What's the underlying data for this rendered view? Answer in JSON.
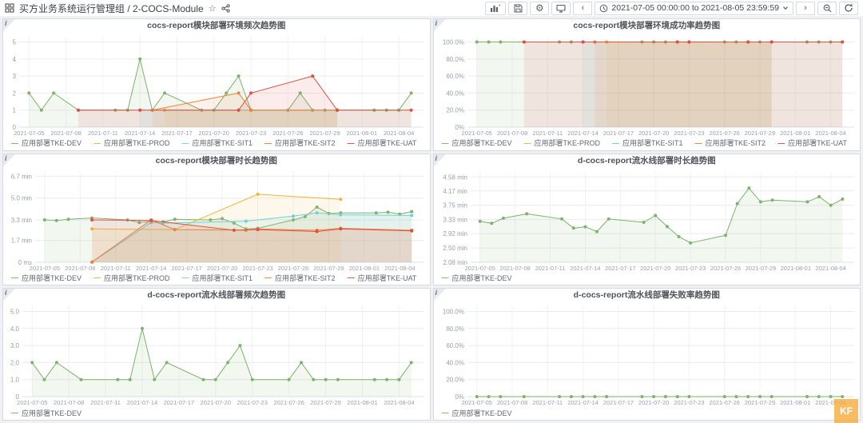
{
  "ui": {
    "info_glyph": "i",
    "star_glyph": "☆",
    "gear_glyph": "⚙",
    "nav_prev": "‹",
    "nav_next": "›",
    "legend_dash": "—"
  },
  "header": {
    "breadcrumb": "买方业务系统运行管理组 / 2-COCS-Module",
    "time_range_label": "2021-07-05 00:00:00 to 2021-08-05 23:59:59"
  },
  "watermark": {
    "label": "KF",
    "color": "#f6ad3c"
  },
  "x_axis": {
    "start_date": "2021-07-05",
    "xlim": [
      -0.8,
      32
    ],
    "tick_days": [
      0,
      3,
      6,
      9,
      12,
      15,
      18,
      21,
      24,
      27,
      30
    ],
    "tick_labels": [
      "2021-07-05",
      "2021-07-08",
      "2021-07-11",
      "2021-07-14",
      "2021-07-17",
      "2021-07-20",
      "2021-07-23",
      "2021-07-26",
      "2021-07-29",
      "2021-08-01",
      "2021-08-04"
    ]
  },
  "chart_data": [
    {
      "type": "line",
      "title": "cocs-report模块部署环境频次趋势图",
      "ylim": [
        0,
        5.35
      ],
      "y_ticks": {
        "values": [
          0,
          1,
          2,
          3,
          4,
          5
        ],
        "labels": [
          "0",
          "1",
          "2",
          "3",
          "4",
          "5"
        ]
      },
      "left_pad": 20,
      "series": [
        {
          "name": "应用部署TKE-DEV",
          "color": "#7EB26D",
          "points": [
            [
              0,
              2
            ],
            [
              1,
              1
            ],
            [
              2,
              2
            ],
            [
              4,
              1
            ],
            [
              7,
              1
            ],
            [
              8,
              1
            ],
            [
              9,
              4
            ],
            [
              10,
              1
            ],
            [
              11,
              2
            ],
            [
              14,
              1
            ],
            [
              15,
              1
            ],
            [
              16,
              2
            ],
            [
              17,
              3
            ],
            [
              18,
              1
            ],
            [
              21,
              1
            ],
            [
              22,
              2
            ],
            [
              23,
              1
            ],
            [
              24,
              1
            ],
            [
              25,
              1
            ],
            [
              28,
              1
            ],
            [
              29,
              1
            ],
            [
              30,
              1
            ],
            [
              31,
              2
            ]
          ]
        },
        {
          "name": "应用部署TKE-PROD",
          "color": "#EAB839",
          "points": [
            [
              11,
              1
            ],
            [
              18,
              1
            ],
            [
              25,
              1
            ]
          ]
        },
        {
          "name": "应用部署TKE-SIT1",
          "color": "#6ED0E0",
          "points": [
            [
              9,
              1
            ],
            [
              17,
              1
            ],
            [
              25,
              1
            ]
          ]
        },
        {
          "name": "应用部署TKE-SIT2",
          "color": "#EF843C",
          "points": [
            [
              10,
              1
            ],
            [
              17,
              2
            ],
            [
              18,
              1
            ],
            [
              25,
              1
            ]
          ]
        },
        {
          "name": "应用部署TKE-UAT",
          "color": "#E24D42",
          "points": [
            [
              4,
              1
            ],
            [
              9,
              1
            ],
            [
              17,
              1
            ],
            [
              18,
              2
            ],
            [
              23,
              3
            ],
            [
              25,
              1
            ],
            [
              31,
              1
            ]
          ]
        }
      ]
    },
    {
      "type": "line",
      "title": "cocs-report模块部署环境成功率趋势图",
      "ylim": [
        0,
        107
      ],
      "y_ticks": {
        "values": [
          0,
          20,
          40,
          60,
          80,
          100
        ],
        "labels": [
          "0%",
          "20.0%",
          "40.0%",
          "60.0%",
          "80.0%",
          "100.0%"
        ]
      },
      "left_pad": 42,
      "series": [
        {
          "name": "应用部署TKE-DEV",
          "color": "#7EB26D",
          "points": [
            [
              0,
              100
            ],
            [
              1,
              100
            ],
            [
              2,
              100
            ],
            [
              4,
              100
            ],
            [
              7,
              100
            ],
            [
              8,
              100
            ],
            [
              9,
              100
            ],
            [
              10,
              100
            ],
            [
              11,
              100
            ],
            [
              14,
              100
            ],
            [
              15,
              100
            ],
            [
              16,
              100
            ],
            [
              17,
              100
            ],
            [
              18,
              100
            ],
            [
              21,
              100
            ],
            [
              22,
              100
            ],
            [
              23,
              100
            ],
            [
              24,
              100
            ],
            [
              25,
              100
            ],
            [
              28,
              100
            ],
            [
              29,
              100
            ],
            [
              30,
              100
            ],
            [
              31,
              100
            ]
          ]
        },
        {
          "name": "应用部署TKE-PROD",
          "color": "#EAB839",
          "points": [
            [
              11,
              100
            ],
            [
              18,
              100
            ],
            [
              25,
              100
            ]
          ]
        },
        {
          "name": "应用部署TKE-SIT1",
          "color": "#6ED0E0",
          "points": [
            [
              9,
              100
            ],
            [
              17,
              100
            ],
            [
              25,
              100
            ]
          ]
        },
        {
          "name": "应用部署TKE-SIT2",
          "color": "#EF843C",
          "points": [
            [
              10,
              100
            ],
            [
              17,
              100
            ],
            [
              18,
              100
            ],
            [
              25,
              100
            ]
          ]
        },
        {
          "name": "应用部署TKE-UAT",
          "color": "#E24D42",
          "points": [
            [
              4,
              100
            ],
            [
              9,
              100
            ],
            [
              17,
              100
            ],
            [
              18,
              100
            ],
            [
              23,
              100
            ],
            [
              25,
              100
            ],
            [
              31,
              100
            ]
          ]
        }
      ]
    },
    {
      "type": "line",
      "title": "cocs-report模块部署时长趋势图",
      "ylim": [
        0,
        7.1
      ],
      "y_ticks": {
        "values": [
          0,
          1.7,
          3.3,
          5.0,
          6.7
        ],
        "labels": [
          "0 ms",
          "1.7 min",
          "3.3 min",
          "5.0 min",
          "6.7 min"
        ]
      },
      "left_pad": 40,
      "series": [
        {
          "name": "应用部署TKE-DEV",
          "color": "#7EB26D",
          "points": [
            [
              0,
              3.3
            ],
            [
              1,
              3.25
            ],
            [
              2,
              3.35
            ],
            [
              4,
              3.45
            ],
            [
              7,
              3.3
            ],
            [
              8,
              3.1
            ],
            [
              9,
              3.2
            ],
            [
              10,
              3.15
            ],
            [
              11,
              3.35
            ],
            [
              14,
              3.3
            ],
            [
              15,
              3.4
            ],
            [
              16,
              3.05
            ],
            [
              17,
              2.6
            ],
            [
              18,
              2.65
            ],
            [
              21,
              3.3
            ],
            [
              22,
              3.55
            ],
            [
              23,
              4.3
            ],
            [
              24,
              3.8
            ],
            [
              25,
              3.85
            ],
            [
              28,
              3.85
            ],
            [
              29,
              3.9
            ],
            [
              30,
              3.75
            ],
            [
              31,
              3.95
            ]
          ]
        },
        {
          "name": "应用部署TKE-PROD",
          "color": "#EAB839",
          "points": [
            [
              4,
              2.6
            ],
            [
              11,
              2.55
            ],
            [
              18,
              5.3
            ],
            [
              25,
              4.9
            ]
          ]
        },
        {
          "name": "应用部署TKE-SIT1",
          "color": "#6ED0E0",
          "points": [
            [
              4,
              0.02
            ],
            [
              9,
              3.1
            ],
            [
              10,
              3.05
            ],
            [
              17,
              3.2
            ],
            [
              21,
              3.6
            ],
            [
              23,
              3.85
            ],
            [
              25,
              3.7
            ],
            [
              31,
              3.65
            ]
          ]
        },
        {
          "name": "应用部署TKE-SIT2",
          "color": "#EF843C",
          "points": [
            [
              4,
              0.02
            ],
            [
              9,
              3.3
            ],
            [
              11,
              2.55
            ],
            [
              17,
              2.5
            ],
            [
              18,
              2.6
            ],
            [
              23,
              2.5
            ],
            [
              25,
              2.65
            ],
            [
              31,
              2.5
            ]
          ]
        },
        {
          "name": "应用部署TKE-UAT",
          "color": "#E24D42",
          "points": [
            [
              4,
              3.3
            ],
            [
              9,
              3.25
            ],
            [
              16,
              2.5
            ],
            [
              18,
              2.55
            ],
            [
              23,
              2.4
            ],
            [
              25,
              2.6
            ],
            [
              31,
              2.45
            ]
          ]
        }
      ]
    },
    {
      "type": "line",
      "title": "d-cocs-report流水线部署时长趋势图",
      "ylim": [
        2.08,
        4.75
      ],
      "y_ticks": {
        "values": [
          2.08,
          2.5,
          2.92,
          3.33,
          3.75,
          4.17,
          4.58
        ],
        "labels": [
          "2.08 min",
          "2.50 min",
          "2.92 min",
          "3.33 min",
          "3.75 min",
          "4.17 min",
          "4.58 min"
        ]
      },
      "left_pad": 46,
      "series": [
        {
          "name": "应用部署TKE-DEV",
          "color": "#7EB26D",
          "points": [
            [
              0,
              3.28
            ],
            [
              1,
              3.22
            ],
            [
              2,
              3.37
            ],
            [
              4,
              3.5
            ],
            [
              7,
              3.35
            ],
            [
              8,
              3.08
            ],
            [
              9,
              3.12
            ],
            [
              10,
              2.98
            ],
            [
              11,
              3.35
            ],
            [
              14,
              3.25
            ],
            [
              15,
              3.45
            ],
            [
              16,
              3.13
            ],
            [
              17,
              2.83
            ],
            [
              18,
              2.65
            ],
            [
              21,
              2.87
            ],
            [
              22,
              3.8
            ],
            [
              23,
              4.25
            ],
            [
              24,
              3.85
            ],
            [
              25,
              3.9
            ],
            [
              28,
              3.85
            ],
            [
              29,
              4.0
            ],
            [
              30,
              3.75
            ],
            [
              31,
              3.93
            ]
          ]
        }
      ]
    },
    {
      "type": "line",
      "title": "d-cocs-report流水线部署频次趋势图",
      "ylim": [
        0,
        5.35
      ],
      "y_ticks": {
        "values": [
          0,
          1,
          2,
          3,
          4,
          5
        ],
        "labels": [
          "0",
          "1.0",
          "2.0",
          "3.0",
          "4.0",
          "5.0"
        ]
      },
      "left_pad": 24,
      "series": [
        {
          "name": "应用部署TKE-DEV",
          "color": "#7EB26D",
          "points": [
            [
              0,
              2
            ],
            [
              1,
              1
            ],
            [
              2,
              2
            ],
            [
              4,
              1
            ],
            [
              7,
              1
            ],
            [
              8,
              1
            ],
            [
              9,
              4
            ],
            [
              10,
              1
            ],
            [
              11,
              2
            ],
            [
              14,
              1
            ],
            [
              15,
              1
            ],
            [
              16,
              2
            ],
            [
              17,
              3
            ],
            [
              18,
              1
            ],
            [
              21,
              1
            ],
            [
              22,
              2
            ],
            [
              23,
              1
            ],
            [
              24,
              1
            ],
            [
              25,
              1
            ],
            [
              28,
              1
            ],
            [
              29,
              1
            ],
            [
              30,
              1
            ],
            [
              31,
              2
            ]
          ]
        }
      ]
    },
    {
      "type": "line",
      "title": "d-cocs-report流水线部署失败率趋势图",
      "ylim": [
        0,
        107
      ],
      "y_ticks": {
        "values": [
          0,
          20,
          40,
          60,
          80,
          100
        ],
        "labels": [
          "0%",
          "20.0%",
          "40.0%",
          "60.0%",
          "80.0%",
          "100.0%"
        ]
      },
      "left_pad": 42,
      "series": [
        {
          "name": "应用部署TKE-DEV",
          "color": "#7EB26D",
          "points": [
            [
              0,
              0
            ],
            [
              1,
              0
            ],
            [
              2,
              0
            ],
            [
              4,
              0
            ],
            [
              7,
              0
            ],
            [
              8,
              0
            ],
            [
              9,
              0
            ],
            [
              10,
              0
            ],
            [
              11,
              0
            ],
            [
              14,
              0
            ],
            [
              15,
              0
            ],
            [
              16,
              0
            ],
            [
              17,
              0
            ],
            [
              18,
              0
            ],
            [
              21,
              0
            ],
            [
              22,
              0
            ],
            [
              23,
              0
            ],
            [
              24,
              0
            ],
            [
              25,
              0
            ],
            [
              28,
              0
            ],
            [
              29,
              0
            ],
            [
              30,
              0
            ],
            [
              31,
              0
            ]
          ]
        }
      ]
    }
  ]
}
